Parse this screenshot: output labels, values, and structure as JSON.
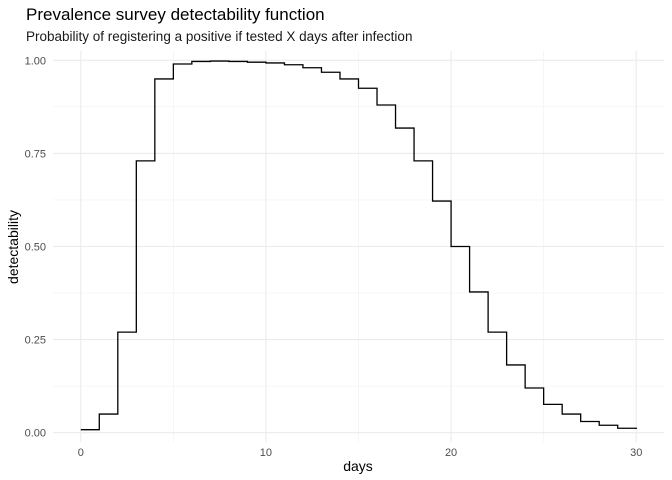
{
  "chart_data": {
    "type": "line",
    "step": true,
    "title": "Prevalence survey detectability function",
    "subtitle": "Probability of registering a positive if tested X days after infection",
    "xlabel": "days",
    "ylabel": "detectability",
    "xlim": [
      -1.5,
      31.5
    ],
    "ylim": [
      -0.025,
      1.025
    ],
    "x_ticks": [
      0,
      10,
      20,
      30
    ],
    "x_tick_labels": [
      "0",
      "10",
      "20",
      "30"
    ],
    "y_ticks": [
      0,
      0.25,
      0.5,
      0.75,
      1
    ],
    "y_tick_labels": [
      "0.00",
      "0.25",
      "0.50",
      "0.75",
      "1.00"
    ],
    "grid": true,
    "line_color": "#000000",
    "series": [
      {
        "x": [
          0,
          1,
          2,
          3,
          4,
          5,
          6,
          7,
          8,
          9,
          10,
          11,
          12,
          13,
          14,
          15,
          16,
          17,
          18,
          19,
          20,
          21,
          22,
          23,
          24,
          25,
          26,
          27,
          28,
          29,
          30
        ],
        "values": [
          0.008,
          0.05,
          0.27,
          0.73,
          0.95,
          0.99,
          0.997,
          0.998,
          0.997,
          0.995,
          0.993,
          0.988,
          0.98,
          0.968,
          0.95,
          0.925,
          0.88,
          0.818,
          0.73,
          0.622,
          0.5,
          0.378,
          0.27,
          0.182,
          0.12,
          0.076,
          0.05,
          0.03,
          0.02,
          0.012,
          0.01
        ]
      }
    ]
  }
}
